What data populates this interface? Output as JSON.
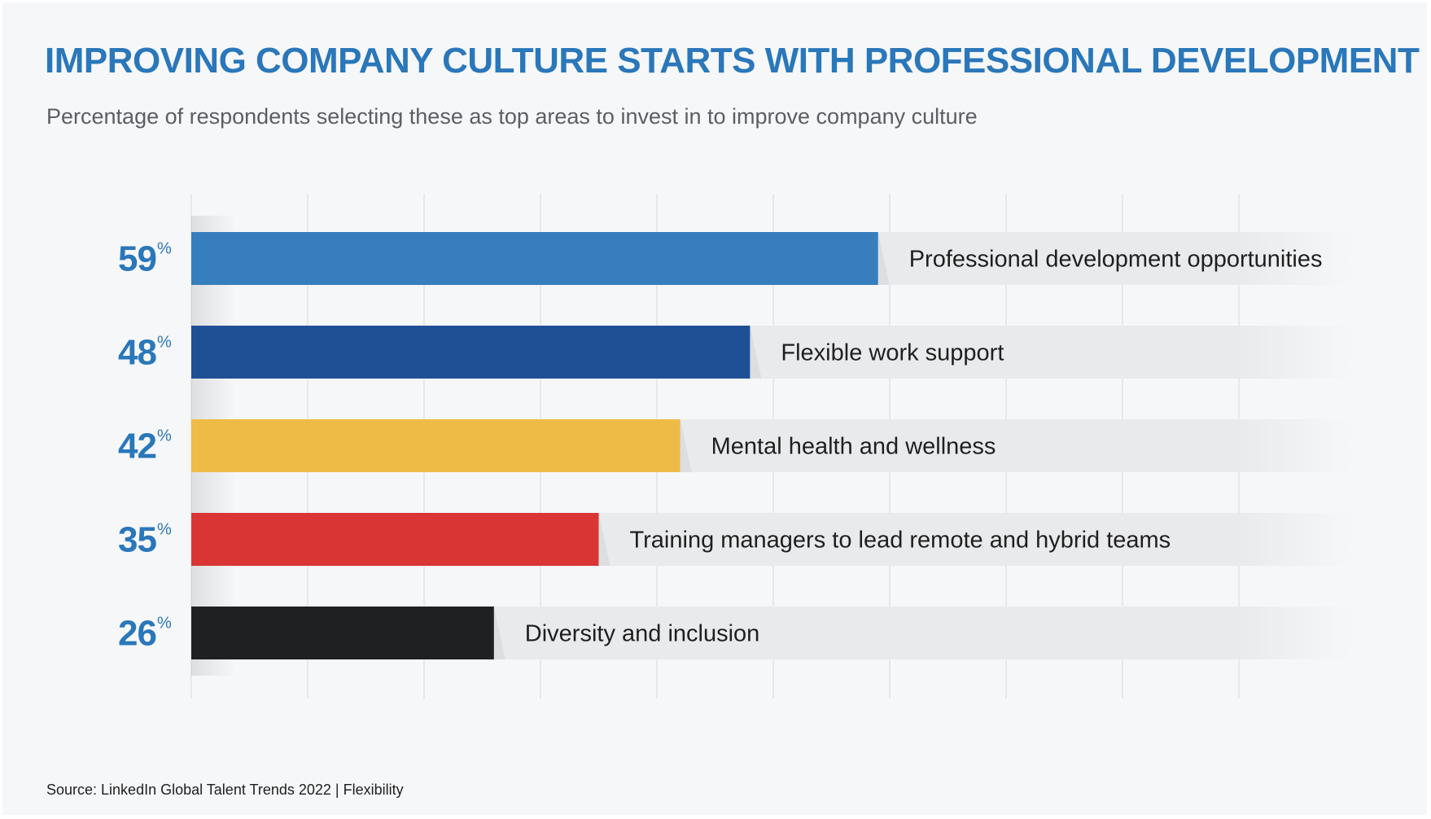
{
  "title": "IMPROVING COMPANY CULTURE STARTS WITH PROFESSIONAL DEVELOPMENT",
  "subtitle": "Percentage of respondents selecting these as top areas to invest in to improve company culture",
  "source": "Source: LinkedIn Global Talent Trends 2022 | Flexibility",
  "percent_symbol": "%",
  "colors": {
    "title": "#2a77ba",
    "value_label": "#2a77ba",
    "track": "#e9eaec",
    "gridline": "#e2e3e6",
    "background": "#f6f7f9"
  },
  "chart_data": {
    "type": "bar",
    "orientation": "horizontal",
    "title": "IMPROVING COMPANY CULTURE STARTS WITH PROFESSIONAL DEVELOPMENT",
    "subtitle": "Percentage of respondents selecting these as top areas to invest in to improve company culture",
    "xlabel": "",
    "ylabel": "",
    "unit": "%",
    "xlim": [
      0,
      100
    ],
    "grid": true,
    "gridline_values": [
      10,
      20,
      30,
      40,
      50,
      60,
      70,
      80,
      90
    ],
    "categories": [
      "Professional development opportunities",
      "Flexible work support",
      "Mental health and wellness",
      "Training managers to lead remote and hybrid teams",
      "Diversity and inclusion"
    ],
    "values": [
      59,
      48,
      42,
      35,
      26
    ],
    "bar_colors": [
      "#367ebd",
      "#1f5096",
      "#eebb47",
      "#d93534",
      "#1f2022"
    ]
  }
}
